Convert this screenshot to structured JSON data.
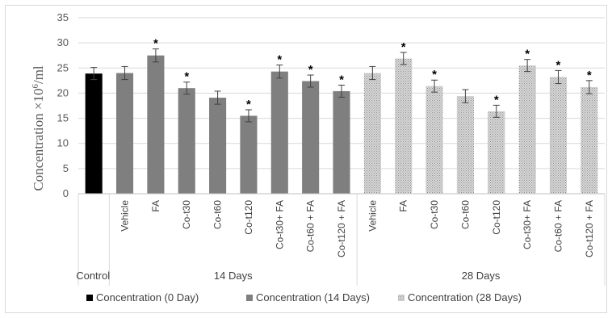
{
  "chart_data": {
    "type": "bar",
    "ylabel_main": "Concentration ×10",
    "ylabel_sup": "6",
    "ylabel_tail": "/ml",
    "ylim": [
      0,
      35
    ],
    "yticks": [
      "0",
      "5",
      "10",
      "15",
      "20",
      "25",
      "30",
      "35"
    ],
    "grid": true,
    "legend_position": "bottom",
    "groups": [
      {
        "label": "Control",
        "series": "Concentration (0 Day)",
        "color": "#000000",
        "categories": [
          ""
        ],
        "values": [
          23.9
        ],
        "errors": [
          1.2
        ],
        "significant": [
          false
        ]
      },
      {
        "label": "14 Days",
        "series": "Concentration (14 Days)",
        "color": "#7f7f7f",
        "categories": [
          "Vehicle",
          "FA",
          "Co-t30",
          "Co-t60",
          "Co-t120",
          "Co-t30+ FA",
          "Co-t60 + FA",
          "Co-t120 + FA"
        ],
        "values": [
          24.0,
          27.5,
          21.0,
          19.1,
          15.5,
          24.3,
          22.4,
          20.4
        ],
        "errors": [
          1.3,
          1.3,
          1.2,
          1.3,
          1.2,
          1.3,
          1.2,
          1.2
        ],
        "significant": [
          false,
          true,
          true,
          false,
          true,
          true,
          true,
          true
        ]
      },
      {
        "label": "28 Days",
        "series": "Concentration (28 Days)",
        "color": "#bfbfbf",
        "categories": [
          "Vehicle",
          "FA",
          "Co-t30",
          "Co-t60",
          "Co-t120",
          "Co-t30+ FA",
          "Co-t60 + FA",
          "Co-t120 + FA"
        ],
        "values": [
          24.0,
          26.9,
          21.4,
          19.4,
          16.4,
          25.5,
          23.2,
          21.2
        ],
        "errors": [
          1.3,
          1.2,
          1.2,
          1.3,
          1.2,
          1.2,
          1.3,
          1.3
        ],
        "significant": [
          false,
          true,
          true,
          false,
          true,
          true,
          true,
          true
        ]
      }
    ],
    "significance_marker": "*",
    "legend": [
      "Concentration (0 Day)",
      "Concentration (14 Days)",
      "Concentration (28 Days)"
    ]
  }
}
